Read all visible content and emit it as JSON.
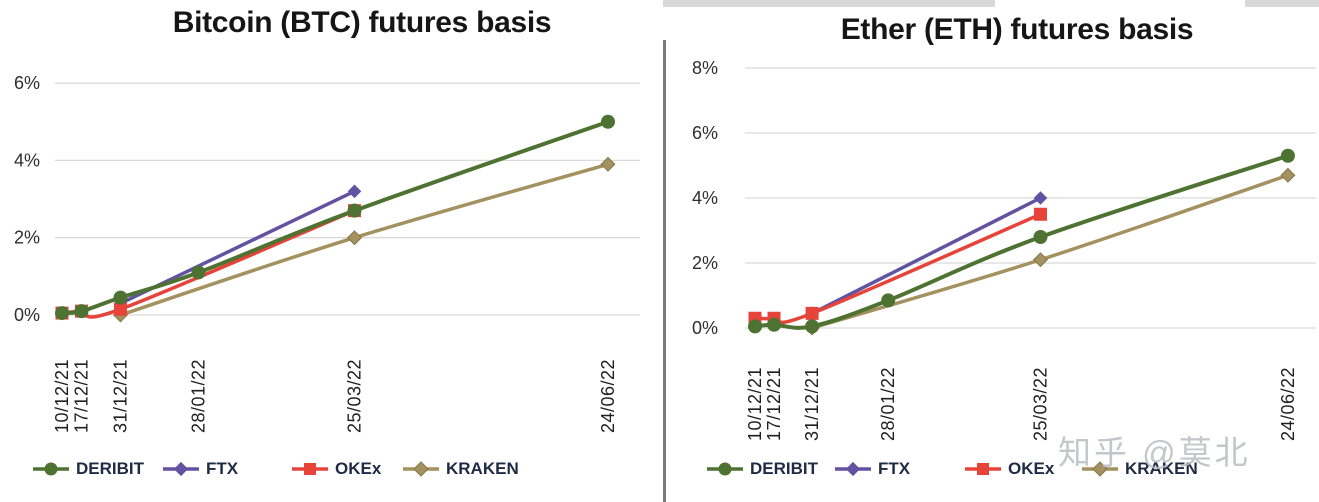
{
  "page": {
    "watermark": "知乎 @莫北"
  },
  "colors": {
    "deribit": "#4e7231",
    "ftx": "#6152a2",
    "okex": "#e6443a",
    "kraken": "#a3925f",
    "kraken_edge": "#85764a",
    "grid": "#dadada",
    "axis_text": "#2e2e2e",
    "legend_text": "#1f2a44",
    "title_text": "#161616",
    "divider": "#7a7a7a",
    "top_strip": "#d9d9d9"
  },
  "chart_data": [
    {
      "type": "line",
      "title": "Bitcoin (BTC) futures basis",
      "x": [
        "10/12/21",
        "17/12/21",
        "31/12/21",
        "28/01/22",
        "25/03/22",
        "24/06/22"
      ],
      "x_axis_time_scaled": true,
      "yticks": [
        "0%",
        "2%",
        "4%",
        "6%"
      ],
      "ylim": [
        0,
        6
      ],
      "grid": true,
      "legend_position": "bottom",
      "series": [
        {
          "name": "DERIBIT",
          "marker": "circle",
          "color": "#4e7231",
          "values": [
            0.05,
            0.1,
            0.45,
            1.1,
            2.7,
            5.0
          ]
        },
        {
          "name": "FTX",
          "marker": "diamond",
          "color": "#6152a2",
          "values": [
            null,
            null,
            0.3,
            null,
            3.2,
            null
          ]
        },
        {
          "name": "OKEx",
          "marker": "square",
          "color": "#e6443a",
          "values": [
            0.05,
            0.1,
            0.15,
            null,
            2.7,
            null
          ]
        },
        {
          "name": "KRAKEN",
          "marker": "diamond",
          "color": "#a3925f",
          "values": [
            null,
            null,
            0.0,
            null,
            2.0,
            3.9
          ]
        }
      ]
    },
    {
      "type": "line",
      "title": "Ether (ETH) futures basis",
      "x": [
        "10/12/21",
        "17/12/21",
        "31/12/21",
        "28/01/22",
        "25/03/22",
        "24/06/22"
      ],
      "x_axis_time_scaled": true,
      "yticks": [
        "0%",
        "2%",
        "4%",
        "6%",
        "8%"
      ],
      "ylim": [
        0,
        8
      ],
      "grid": true,
      "legend_position": "bottom",
      "series": [
        {
          "name": "DERIBIT",
          "marker": "circle",
          "color": "#4e7231",
          "values": [
            0.05,
            0.1,
            0.05,
            0.85,
            2.8,
            5.3
          ]
        },
        {
          "name": "FTX",
          "marker": "diamond",
          "color": "#6152a2",
          "values": [
            null,
            null,
            0.45,
            null,
            4.0,
            null
          ]
        },
        {
          "name": "OKEx",
          "marker": "square",
          "color": "#e6443a",
          "values": [
            0.3,
            0.3,
            0.45,
            null,
            3.5,
            null
          ]
        },
        {
          "name": "KRAKEN",
          "marker": "diamond",
          "color": "#a3925f",
          "values": [
            null,
            null,
            0.0,
            null,
            2.1,
            4.7
          ]
        }
      ]
    }
  ]
}
